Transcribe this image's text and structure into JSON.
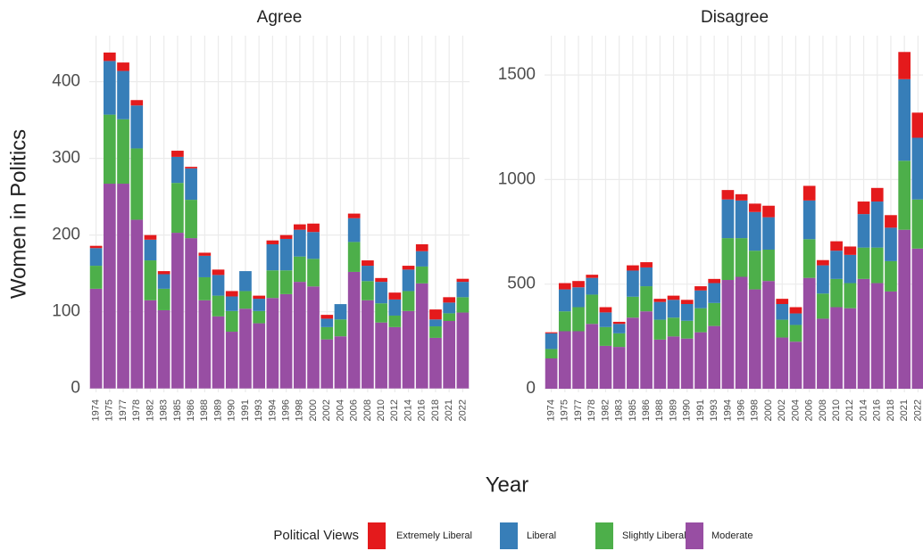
{
  "chart_data": [
    {
      "type": "bar",
      "stacked": true,
      "title": "Agree",
      "categories": [
        "1974",
        "1975",
        "1977",
        "1978",
        "1982",
        "1983",
        "1985",
        "1986",
        "1988",
        "1989",
        "1990",
        "1991",
        "1993",
        "1994",
        "1996",
        "1998",
        "2000",
        "2002",
        "2004",
        "2006",
        "2008",
        "2010",
        "2012",
        "2014",
        "2016",
        "2018",
        "2021",
        "2022"
      ],
      "series": [
        {
          "name": "Moderate",
          "color": "#984ea3",
          "values": [
            130,
            267,
            267,
            220,
            115,
            102,
            203,
            196,
            115,
            94,
            74,
            104,
            85,
            118,
            123,
            139,
            133,
            64,
            68,
            152,
            115,
            86,
            80,
            101,
            137,
            66,
            88,
            99
          ]
        },
        {
          "name": "Slightly Liberal",
          "color": "#4daf4a",
          "values": [
            30,
            90,
            84,
            93,
            52,
            28,
            65,
            50,
            30,
            27,
            27,
            23,
            16,
            36,
            31,
            33,
            36,
            16,
            22,
            39,
            25,
            25,
            15,
            26,
            22,
            15,
            10,
            20
          ]
        },
        {
          "name": "Liberal",
          "color": "#377eb8",
          "values": [
            23,
            70,
            63,
            56,
            27,
            19,
            34,
            41,
            28,
            27,
            19,
            26,
            16,
            34,
            41,
            35,
            35,
            11,
            20,
            31,
            20,
            28,
            21,
            28,
            20,
            9,
            14,
            20
          ]
        },
        {
          "name": "Extremely Liberal",
          "color": "#e41a1c",
          "values": [
            3,
            11,
            11,
            7,
            6,
            4,
            8,
            2,
            4,
            7,
            7,
            0,
            4,
            5,
            5,
            7,
            11,
            5,
            0,
            6,
            7,
            5,
            9,
            5,
            9,
            13,
            7,
            4
          ]
        }
      ],
      "ylim": [
        -5,
        460
      ],
      "yticks": [
        0,
        100,
        200,
        300,
        400
      ],
      "grid": true
    },
    {
      "type": "bar",
      "stacked": true,
      "title": "Disagree",
      "categories": [
        "1974",
        "1975",
        "1977",
        "1978",
        "1982",
        "1983",
        "1985",
        "1986",
        "1988",
        "1989",
        "1990",
        "1991",
        "1993",
        "1994",
        "1996",
        "1998",
        "2000",
        "2002",
        "2004",
        "2006",
        "2008",
        "2010",
        "2012",
        "2014",
        "2016",
        "2018",
        "2021",
        "2022"
      ],
      "series": [
        {
          "values": [
            145,
            275,
            275,
            310,
            205,
            200,
            340,
            370,
            235,
            250,
            240,
            270,
            300,
            520,
            535,
            475,
            515,
            245,
            225,
            530,
            335,
            390,
            385,
            525,
            505,
            465,
            760,
            670
          ]
        },
        {
          "values": [
            45,
            95,
            115,
            140,
            90,
            65,
            100,
            120,
            95,
            90,
            85,
            115,
            110,
            200,
            185,
            185,
            150,
            85,
            80,
            185,
            120,
            135,
            120,
            150,
            170,
            145,
            330,
            235
          ]
        },
        {
          "values": [
            75,
            105,
            95,
            80,
            70,
            45,
            125,
            90,
            85,
            85,
            80,
            85,
            95,
            185,
            180,
            185,
            155,
            75,
            55,
            185,
            135,
            135,
            135,
            160,
            220,
            160,
            390,
            295
          ]
        },
        {
          "values": [
            5,
            30,
            30,
            15,
            25,
            10,
            25,
            25,
            15,
            20,
            20,
            20,
            20,
            45,
            30,
            40,
            55,
            25,
            30,
            70,
            25,
            45,
            40,
            60,
            65,
            60,
            130,
            120
          ]
        }
      ],
      "ylim": [
        -17,
        1688
      ],
      "yticks": [
        0,
        500,
        1000,
        1500
      ],
      "grid": true
    }
  ],
  "xlabel": "Year",
  "ylabel": "Women in Politics",
  "legend_title": "Political Views"
}
